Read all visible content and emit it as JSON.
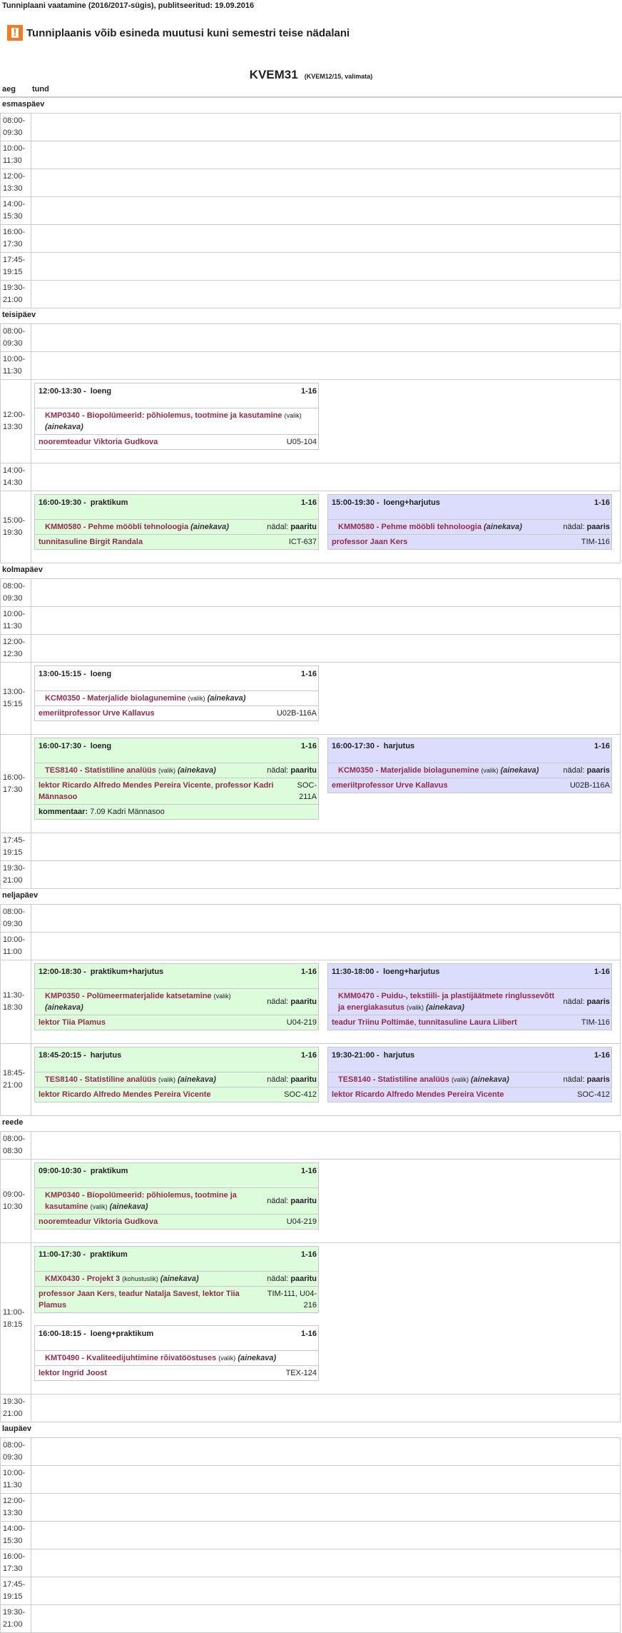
{
  "page_title": "Tunniplaani vaatamine (2016/2017-sügis), publitseeritud: 19.09.2016",
  "warning": {
    "icon": "warning-icon",
    "text": "Tunniplaanis võib esineda muutusi kuni semestri teise nädalani",
    "color": "#f47b20"
  },
  "group": {
    "name": "KVEM31",
    "sub": "(KVEM12/15, valimata)"
  },
  "columns": {
    "time": "aeg",
    "lesson": "tund"
  },
  "colors": {
    "green": "#dcfcdc",
    "purple": "#dcdcfc",
    "course": "#962a4c"
  },
  "labels": {
    "week": "nädal:",
    "comment": "kommentaar:"
  },
  "days": [
    {
      "name": "esmaspäev",
      "slots": [
        {
          "start": "08:00-",
          "end": "09:30",
          "cols": []
        },
        {
          "start": "10:00-",
          "end": "11:30",
          "cols": []
        },
        {
          "start": "12:00-",
          "end": "13:30",
          "cols": []
        },
        {
          "start": "14:00-",
          "end": "15:30",
          "cols": []
        },
        {
          "start": "16:00-",
          "end": "17:30",
          "cols": []
        },
        {
          "start": "17:45-",
          "end": "19:15",
          "cols": []
        },
        {
          "start": "19:30-",
          "end": "21:00",
          "cols": []
        }
      ]
    },
    {
      "name": "teisipäev",
      "slots": [
        {
          "start": "08:00-",
          "end": "09:30",
          "cols": []
        },
        {
          "start": "10:00-",
          "end": "11:30",
          "cols": []
        },
        {
          "start": "12:00-",
          "end": "13:30",
          "cols": [
            [
              {
                "color": "white",
                "time": "12:00-13:30 -",
                "type": "loeng",
                "weeks": "1-16",
                "course": "KMP0340 - Biopolümeerid: põhiolemus, tootmine ja kasutamine",
                "choice": "(valik)",
                "ainekava": "(ainekava)",
                "parity": "",
                "teachers": [
                  "nooremteadur Viktoria Gudkova"
                ],
                "room": "U05-104",
                "comment": ""
              }
            ]
          ]
        },
        {
          "start": "14:00-",
          "end": "14:30",
          "cols": []
        },
        {
          "start": "15:00-",
          "end": "19:30",
          "cols": [
            [
              {
                "color": "green",
                "time": "16:00-19:30 -",
                "type": "praktikum",
                "weeks": "1-16",
                "course": "KMM0580 - Pehme mööbli tehnoloogia",
                "choice": "",
                "ainekava": "(ainekava)",
                "parity": "paaritu",
                "teachers": [
                  "tunnitasuline Birgit Randala"
                ],
                "room": "ICT-637",
                "comment": ""
              }
            ],
            [
              {
                "color": "purple",
                "time": "15:00-19:30 -",
                "type": "loeng+harjutus",
                "weeks": "1-16",
                "course": "KMM0580 - Pehme mööbli tehnoloogia",
                "choice": "",
                "ainekava": "(ainekava)",
                "parity": "paaris",
                "teachers": [
                  "professor Jaan Kers"
                ],
                "room": "TIM-116",
                "comment": ""
              }
            ]
          ]
        }
      ]
    },
    {
      "name": "kolmapäev",
      "slots": [
        {
          "start": "08:00-",
          "end": "09:30",
          "cols": []
        },
        {
          "start": "10:00-",
          "end": "11:30",
          "cols": []
        },
        {
          "start": "12:00-",
          "end": "12:30",
          "cols": []
        },
        {
          "start": "13:00-",
          "end": "15:15",
          "cols": [
            [
              {
                "color": "white",
                "time": "13:00-15:15 -",
                "type": "loeng",
                "weeks": "1-16",
                "course": "KCM0350 - Materjalide biolagunemine",
                "choice": "(valik)",
                "ainekava": "(ainekava)",
                "parity": "",
                "teachers": [
                  "emeriitprofessor Urve Kallavus"
                ],
                "room": "U02B-116A",
                "comment": ""
              }
            ]
          ]
        },
        {
          "start": "16:00-",
          "end": "17:30",
          "cols": [
            [
              {
                "color": "green",
                "time": "16:00-17:30 -",
                "type": "loeng",
                "weeks": "1-16",
                "course": "TES8140 - Statistiline analüüs",
                "choice": "(valik)",
                "ainekava": "(ainekava)",
                "parity": "paaritu",
                "teachers": [
                  "lektor Ricardo Alfredo Mendes Pereira Vicente",
                  "professor Kadri Männasoo"
                ],
                "room": "SOC-211A",
                "comment": "7.09 Kadri Männasoo"
              }
            ],
            [
              {
                "color": "purple",
                "time": "16:00-17:30 -",
                "type": "harjutus",
                "weeks": "1-16",
                "course": "KCM0350 - Materjalide biolagunemine",
                "choice": "(valik)",
                "ainekava": "(ainekava)",
                "parity": "paaris",
                "teachers": [
                  "emeriitprofessor Urve Kallavus"
                ],
                "room": "U02B-116A",
                "comment": ""
              }
            ]
          ]
        },
        {
          "start": "17:45-",
          "end": "19:15",
          "cols": []
        },
        {
          "start": "19:30-",
          "end": "21:00",
          "cols": []
        }
      ]
    },
    {
      "name": "neljapäev",
      "slots": [
        {
          "start": "08:00-",
          "end": "09:30",
          "cols": []
        },
        {
          "start": "10:00-",
          "end": "11:00",
          "cols": []
        },
        {
          "start": "11:30-",
          "end": "18:30",
          "cols": [
            [
              {
                "color": "green",
                "time": "12:00-18:30 -",
                "type": "praktikum+harjutus",
                "weeks": "1-16",
                "course": "KMP0350 - Polümeermaterjalide katsetamine",
                "choice": "(valik)",
                "ainekava": "(ainekava)",
                "parity": "paaritu",
                "teachers": [
                  "lektor Tiia Plamus"
                ],
                "room": "U04-219",
                "comment": ""
              }
            ],
            [
              {
                "color": "purple",
                "time": "11:30-18:00 -",
                "type": "loeng+harjutus",
                "weeks": "1-16",
                "course": "KMM0470 - Puidu-, tekstiili- ja plastijäätmete ringlussevõtt ja energiakasutus",
                "choice": "(valik)",
                "ainekava": "(ainekava)",
                "parity": "paaris",
                "teachers": [
                  "teadur Triinu Poltimäe",
                  "tunnitasuline Laura Liibert"
                ],
                "room": "TIM-116",
                "comment": ""
              }
            ]
          ]
        },
        {
          "start": "18:45-",
          "end": "21:00",
          "cols": [
            [
              {
                "color": "green",
                "time": "18:45-20:15 -",
                "type": "harjutus",
                "weeks": "1-16",
                "course": "TES8140 - Statistiline analüüs",
                "choice": "(valik)",
                "ainekava": "(ainekava)",
                "parity": "paaritu",
                "teachers": [
                  "lektor Ricardo Alfredo Mendes Pereira Vicente"
                ],
                "room": "SOC-412",
                "comment": ""
              }
            ],
            [
              {
                "color": "purple",
                "time": "19:30-21:00 -",
                "type": "harjutus",
                "weeks": "1-16",
                "course": "TES8140 - Statistiline analüüs",
                "choice": "(valik)",
                "ainekava": "(ainekava)",
                "parity": "paaris",
                "teachers": [
                  "lektor Ricardo Alfredo Mendes Pereira Vicente"
                ],
                "room": "SOC-412",
                "comment": ""
              }
            ]
          ]
        }
      ]
    },
    {
      "name": "reede",
      "slots": [
        {
          "start": "08:00-",
          "end": "08:30",
          "cols": []
        },
        {
          "start": "09:00-",
          "end": "10:30",
          "cols": [
            [
              {
                "color": "green",
                "time": "09:00-10:30 -",
                "type": "praktikum",
                "weeks": "1-16",
                "course": "KMP0340 - Biopolümeerid: põhiolemus, tootmine ja kasutamine",
                "choice": "(valik)",
                "ainekava": "(ainekava)",
                "parity": "paaritu",
                "teachers": [
                  "nooremteadur Viktoria Gudkova"
                ],
                "room": "U04-219",
                "comment": ""
              }
            ]
          ]
        },
        {
          "start": "11:00-",
          "end": "18:15",
          "cols": [
            [
              {
                "color": "green",
                "time": "11:00-17:30 -",
                "type": "praktikum",
                "weeks": "1-16",
                "course": "KMX0430 - Projekt 3",
                "choice": "(kohustuslik)",
                "ainekava": "(ainekava)",
                "parity": "paaritu",
                "teachers": [
                  "professor Jaan Kers",
                  "teadur Natalja Savest",
                  "lektor Tiia Plamus"
                ],
                "room": "TIM-111, U04-216",
                "comment": ""
              },
              {
                "color": "white",
                "time": "16:00-18:15 -",
                "type": "loeng+praktikum",
                "weeks": "1-16",
                "course": "KMT0490 - Kvaliteedijuhtimine rõivatööstuses",
                "choice": "(valik)",
                "ainekava": "(ainekava)",
                "parity": "",
                "teachers": [
                  "lektor Ingrid Joost"
                ],
                "room": "TEX-124",
                "comment": ""
              }
            ]
          ]
        },
        {
          "start": "19:30-",
          "end": "21:00",
          "cols": []
        }
      ]
    },
    {
      "name": "laupäev",
      "slots": [
        {
          "start": "08:00-",
          "end": "09:30",
          "cols": []
        },
        {
          "start": "10:00-",
          "end": "11:30",
          "cols": []
        },
        {
          "start": "12:00-",
          "end": "13:30",
          "cols": []
        },
        {
          "start": "14:00-",
          "end": "15:30",
          "cols": []
        },
        {
          "start": "16:00-",
          "end": "17:30",
          "cols": []
        },
        {
          "start": "17:45-",
          "end": "19:15",
          "cols": []
        },
        {
          "start": "19:30-",
          "end": "21:00",
          "cols": []
        }
      ]
    }
  ]
}
